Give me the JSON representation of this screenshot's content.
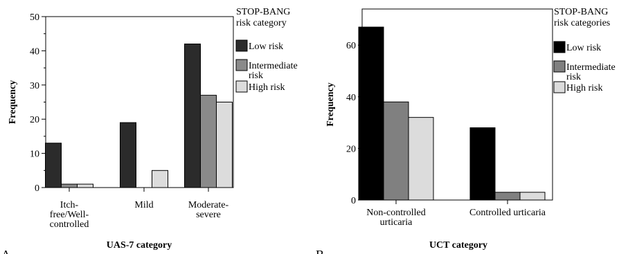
{
  "chart_data": [
    {
      "type": "bar",
      "panel_label": "A",
      "categories": [
        "Itch-free/Well-controlled",
        "Mild",
        "Moderate-severe"
      ],
      "category_lines": [
        [
          "Itch-",
          "free/Well-",
          "controlled"
        ],
        [
          "Mild"
        ],
        [
          "Moderate-",
          "severe"
        ]
      ],
      "series": [
        {
          "name": "Low risk",
          "values": [
            13,
            19,
            42
          ],
          "color": "#2b2b2b"
        },
        {
          "name": "Intermediate risk",
          "values": [
            1,
            0,
            27
          ],
          "color": "#8a8a8a"
        },
        {
          "name": "High risk",
          "values": [
            1,
            5,
            25
          ],
          "color": "#dcdcdc"
        }
      ],
      "legend_title": [
        "STOP-BANG",
        "risk category"
      ],
      "legend_labels": [
        [
          "Low risk"
        ],
        [
          "Intermediate",
          "risk"
        ],
        [
          "High risk"
        ]
      ],
      "xlabel": "UAS-7 category",
      "ylabel": "Frequency",
      "ylim": [
        0,
        50
      ],
      "yticks": [
        0,
        10,
        20,
        30,
        40,
        50
      ],
      "legend_position": "right",
      "grid": false
    },
    {
      "type": "bar",
      "panel_label": "B",
      "categories": [
        "Non-controlled urticaria",
        "Controlled urticaria"
      ],
      "category_lines": [
        [
          "Non-controlled",
          "urticaria"
        ],
        [
          "Controlled urticaria"
        ]
      ],
      "series": [
        {
          "name": "Low risk",
          "values": [
            67,
            28
          ],
          "color": "#000000"
        },
        {
          "name": "Intermediate risk",
          "values": [
            38,
            3
          ],
          "color": "#808080"
        },
        {
          "name": "High risk",
          "values": [
            32,
            3
          ],
          "color": "#dcdcdc"
        }
      ],
      "legend_title": [
        "STOP-BANG",
        "risk categories"
      ],
      "legend_labels": [
        [
          "Low risk"
        ],
        [
          "Intermediate",
          "risk"
        ],
        [
          "High risk"
        ]
      ],
      "xlabel": "UCT category",
      "ylabel": "Frequency",
      "ylim": [
        0,
        74
      ],
      "yticks": [
        0,
        20,
        40,
        60
      ],
      "legend_position": "right",
      "grid": false
    }
  ]
}
